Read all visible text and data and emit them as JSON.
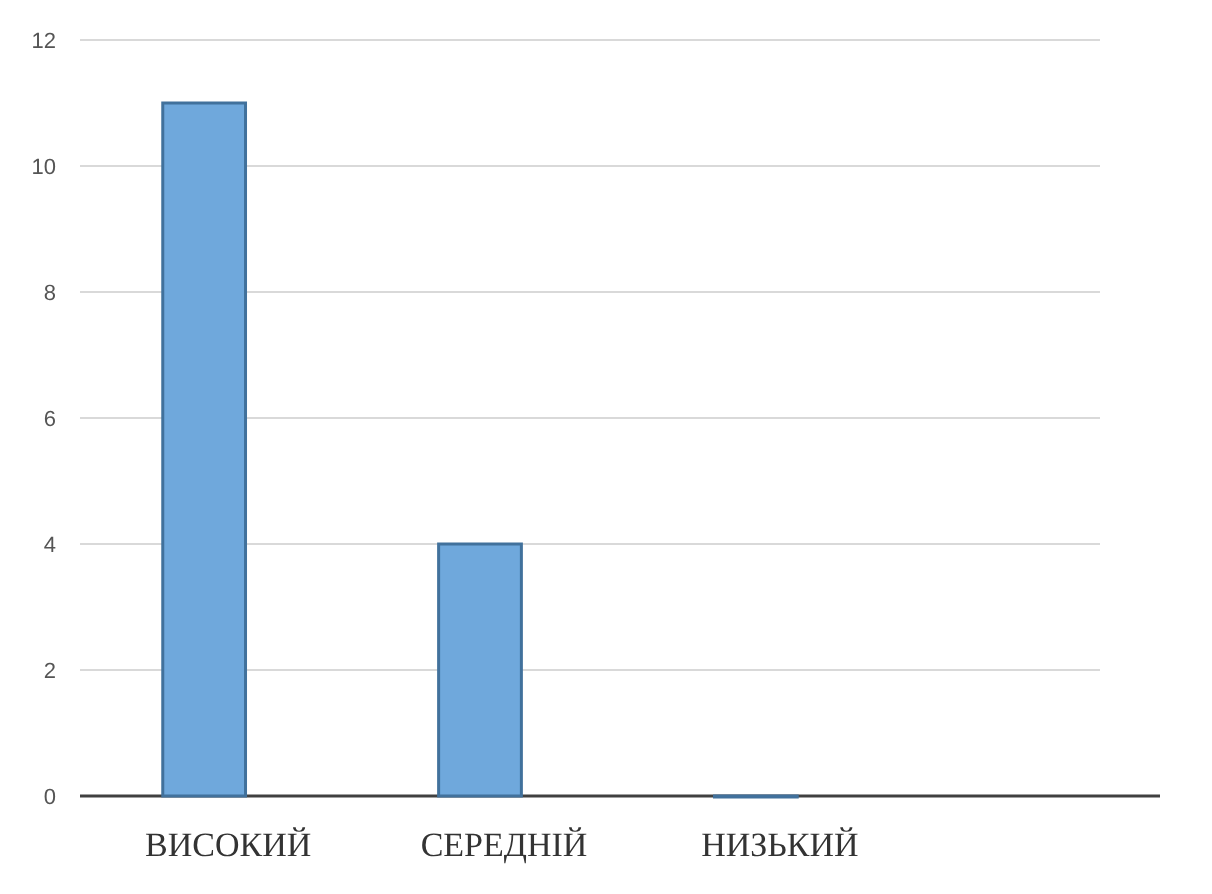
{
  "chart_data": {
    "type": "bar",
    "categories": [
      "ВИСОКИЙ",
      "СЕРЕДНІЙ",
      "НИЗЬКИЙ"
    ],
    "values": [
      11,
      4,
      0
    ],
    "color": "#6fa8dc",
    "ylim": [
      0,
      12
    ],
    "yticks": [
      0,
      2,
      4,
      6,
      8,
      10,
      12
    ],
    "grid": "y"
  }
}
